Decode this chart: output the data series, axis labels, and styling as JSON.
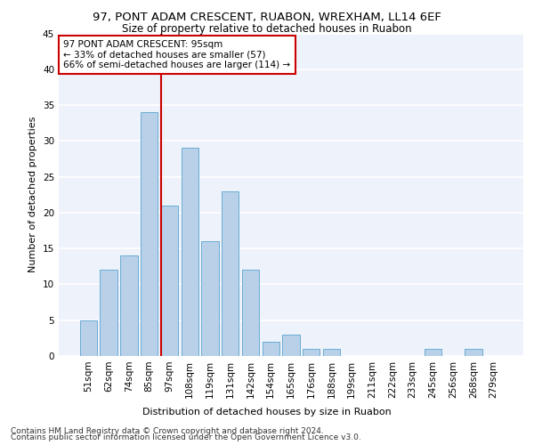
{
  "title1": "97, PONT ADAM CRESCENT, RUABON, WREXHAM, LL14 6EF",
  "title2": "Size of property relative to detached houses in Ruabon",
  "xlabel": "Distribution of detached houses by size in Ruabon",
  "ylabel": "Number of detached properties",
  "categories": [
    "51sqm",
    "62sqm",
    "74sqm",
    "85sqm",
    "97sqm",
    "108sqm",
    "119sqm",
    "131sqm",
    "142sqm",
    "154sqm",
    "165sqm",
    "176sqm",
    "188sqm",
    "199sqm",
    "211sqm",
    "222sqm",
    "233sqm",
    "245sqm",
    "256sqm",
    "268sqm",
    "279sqm"
  ],
  "values": [
    5,
    12,
    14,
    34,
    21,
    29,
    16,
    23,
    12,
    2,
    3,
    1,
    1,
    0,
    0,
    0,
    0,
    1,
    0,
    1,
    0
  ],
  "bar_color": "#b8d0e8",
  "bar_edge_color": "#6aadd5",
  "vline_color": "#cc0000",
  "annotation_text": "97 PONT ADAM CRESCENT: 95sqm\n← 33% of detached houses are smaller (57)\n66% of semi-detached houses are larger (114) →",
  "annotation_box_color": "#ffffff",
  "annotation_box_edge": "#cc0000",
  "footer1": "Contains HM Land Registry data © Crown copyright and database right 2024.",
  "footer2": "Contains public sector information licensed under the Open Government Licence v3.0.",
  "ylim": [
    0,
    45
  ],
  "yticks": [
    0,
    5,
    10,
    15,
    20,
    25,
    30,
    35,
    40,
    45
  ],
  "bg_color": "#eef2fa",
  "grid_color": "#ffffff",
  "title1_fontsize": 9.5,
  "title2_fontsize": 8.5,
  "xlabel_fontsize": 8,
  "ylabel_fontsize": 8,
  "tick_fontsize": 7.5,
  "annotation_fontsize": 7.5,
  "footer_fontsize": 6.5
}
